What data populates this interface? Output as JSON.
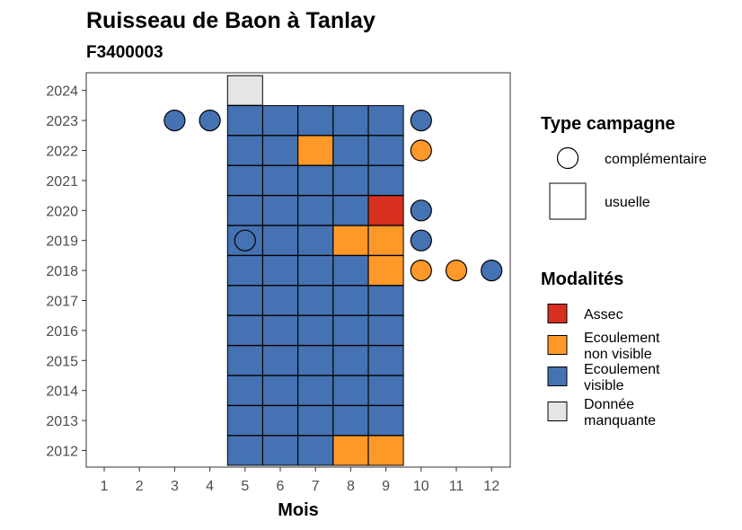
{
  "chart_data": {
    "type": "heatmap",
    "title": "Ruisseau de Baon à Tanlay",
    "subtitle": "F3400003",
    "xlabel": "Mois",
    "ylabel": "",
    "x_ticks": [
      "1",
      "2",
      "3",
      "4",
      "5",
      "6",
      "7",
      "8",
      "9",
      "10",
      "11",
      "12"
    ],
    "y_ticks": [
      "2012",
      "2013",
      "2014",
      "2015",
      "2016",
      "2017",
      "2018",
      "2019",
      "2020",
      "2021",
      "2022",
      "2023",
      "2024"
    ],
    "xlim": [
      1,
      12
    ],
    "ylim": [
      2012,
      2024
    ],
    "grid": false,
    "legend_position": "right",
    "type_legend": {
      "title": "Type campagne",
      "items": [
        {
          "key": "complementaire",
          "label": "complémentaire",
          "shape": "circle"
        },
        {
          "key": "usuelle",
          "label": "usuelle",
          "shape": "square"
        }
      ]
    },
    "modalites_legend": {
      "title": "Modalités",
      "items": [
        {
          "key": "assec",
          "lines": [
            "Assec"
          ],
          "color": "#d7301f"
        },
        {
          "key": "non_visible",
          "lines": [
            "Ecoulement",
            "non visible"
          ],
          "color": "#fe9929"
        },
        {
          "key": "visible",
          "lines": [
            "Ecoulement",
            "visible"
          ],
          "color": "#4572b2"
        },
        {
          "key": "manquante",
          "lines": [
            "Donnée",
            "manquante"
          ],
          "color": "#e5e5e5"
        }
      ]
    },
    "points": [
      {
        "year": 2012,
        "month": 5,
        "type": "u",
        "status": "visible"
      },
      {
        "year": 2012,
        "month": 6,
        "type": "u",
        "status": "visible"
      },
      {
        "year": 2012,
        "month": 7,
        "type": "u",
        "status": "visible"
      },
      {
        "year": 2012,
        "month": 8,
        "type": "u",
        "status": "non_visible"
      },
      {
        "year": 2012,
        "month": 9,
        "type": "u",
        "status": "non_visible"
      },
      {
        "year": 2013,
        "month": 5,
        "type": "u",
        "status": "visible"
      },
      {
        "year": 2013,
        "month": 6,
        "type": "u",
        "status": "visible"
      },
      {
        "year": 2013,
        "month": 7,
        "type": "u",
        "status": "visible"
      },
      {
        "year": 2013,
        "month": 8,
        "type": "u",
        "status": "visible"
      },
      {
        "year": 2013,
        "month": 9,
        "type": "u",
        "status": "visible"
      },
      {
        "year": 2014,
        "month": 5,
        "type": "u",
        "status": "visible"
      },
      {
        "year": 2014,
        "month": 6,
        "type": "u",
        "status": "visible"
      },
      {
        "year": 2014,
        "month": 7,
        "type": "u",
        "status": "visible"
      },
      {
        "year": 2014,
        "month": 8,
        "type": "u",
        "status": "visible"
      },
      {
        "year": 2014,
        "month": 9,
        "type": "u",
        "status": "visible"
      },
      {
        "year": 2015,
        "month": 5,
        "type": "u",
        "status": "visible"
      },
      {
        "year": 2015,
        "month": 6,
        "type": "u",
        "status": "visible"
      },
      {
        "year": 2015,
        "month": 7,
        "type": "u",
        "status": "visible"
      },
      {
        "year": 2015,
        "month": 8,
        "type": "u",
        "status": "visible"
      },
      {
        "year": 2015,
        "month": 9,
        "type": "u",
        "status": "visible"
      },
      {
        "year": 2016,
        "month": 5,
        "type": "u",
        "status": "visible"
      },
      {
        "year": 2016,
        "month": 6,
        "type": "u",
        "status": "visible"
      },
      {
        "year": 2016,
        "month": 7,
        "type": "u",
        "status": "visible"
      },
      {
        "year": 2016,
        "month": 8,
        "type": "u",
        "status": "visible"
      },
      {
        "year": 2016,
        "month": 9,
        "type": "u",
        "status": "visible"
      },
      {
        "year": 2017,
        "month": 5,
        "type": "u",
        "status": "visible"
      },
      {
        "year": 2017,
        "month": 6,
        "type": "u",
        "status": "visible"
      },
      {
        "year": 2017,
        "month": 7,
        "type": "u",
        "status": "visible"
      },
      {
        "year": 2017,
        "month": 8,
        "type": "u",
        "status": "visible"
      },
      {
        "year": 2017,
        "month": 9,
        "type": "u",
        "status": "visible"
      },
      {
        "year": 2018,
        "month": 5,
        "type": "u",
        "status": "visible"
      },
      {
        "year": 2018,
        "month": 6,
        "type": "u",
        "status": "visible"
      },
      {
        "year": 2018,
        "month": 7,
        "type": "u",
        "status": "visible"
      },
      {
        "year": 2018,
        "month": 8,
        "type": "u",
        "status": "visible"
      },
      {
        "year": 2018,
        "month": 9,
        "type": "u",
        "status": "non_visible"
      },
      {
        "year": 2018,
        "month": 10,
        "type": "c",
        "status": "non_visible"
      },
      {
        "year": 2018,
        "month": 11,
        "type": "c",
        "status": "non_visible"
      },
      {
        "year": 2018,
        "month": 12,
        "type": "c",
        "status": "visible"
      },
      {
        "year": 2019,
        "month": 5,
        "type": "u",
        "status": "visible"
      },
      {
        "year": 2019,
        "month": 5,
        "type": "c",
        "status": "visible"
      },
      {
        "year": 2019,
        "month": 6,
        "type": "u",
        "status": "visible"
      },
      {
        "year": 2019,
        "month": 7,
        "type": "u",
        "status": "visible"
      },
      {
        "year": 2019,
        "month": 8,
        "type": "u",
        "status": "non_visible"
      },
      {
        "year": 2019,
        "month": 9,
        "type": "u",
        "status": "non_visible"
      },
      {
        "year": 2019,
        "month": 10,
        "type": "c",
        "status": "visible"
      },
      {
        "year": 2020,
        "month": 5,
        "type": "u",
        "status": "visible"
      },
      {
        "year": 2020,
        "month": 6,
        "type": "u",
        "status": "visible"
      },
      {
        "year": 2020,
        "month": 7,
        "type": "u",
        "status": "visible"
      },
      {
        "year": 2020,
        "month": 8,
        "type": "u",
        "status": "visible"
      },
      {
        "year": 2020,
        "month": 9,
        "type": "u",
        "status": "assec"
      },
      {
        "year": 2020,
        "month": 10,
        "type": "c",
        "status": "visible"
      },
      {
        "year": 2021,
        "month": 5,
        "type": "u",
        "status": "visible"
      },
      {
        "year": 2021,
        "month": 6,
        "type": "u",
        "status": "visible"
      },
      {
        "year": 2021,
        "month": 7,
        "type": "u",
        "status": "visible"
      },
      {
        "year": 2021,
        "month": 8,
        "type": "u",
        "status": "visible"
      },
      {
        "year": 2021,
        "month": 9,
        "type": "u",
        "status": "visible"
      },
      {
        "year": 2022,
        "month": 5,
        "type": "u",
        "status": "visible"
      },
      {
        "year": 2022,
        "month": 6,
        "type": "u",
        "status": "visible"
      },
      {
        "year": 2022,
        "month": 7,
        "type": "u",
        "status": "non_visible"
      },
      {
        "year": 2022,
        "month": 8,
        "type": "u",
        "status": "visible"
      },
      {
        "year": 2022,
        "month": 9,
        "type": "u",
        "status": "visible"
      },
      {
        "year": 2022,
        "month": 10,
        "type": "c",
        "status": "non_visible"
      },
      {
        "year": 2023,
        "month": 3,
        "type": "c",
        "status": "visible"
      },
      {
        "year": 2023,
        "month": 4,
        "type": "c",
        "status": "visible"
      },
      {
        "year": 2023,
        "month": 5,
        "type": "u",
        "status": "visible"
      },
      {
        "year": 2023,
        "month": 6,
        "type": "u",
        "status": "visible"
      },
      {
        "year": 2023,
        "month": 7,
        "type": "u",
        "status": "visible"
      },
      {
        "year": 2023,
        "month": 8,
        "type": "u",
        "status": "visible"
      },
      {
        "year": 2023,
        "month": 9,
        "type": "u",
        "status": "visible"
      },
      {
        "year": 2023,
        "month": 10,
        "type": "c",
        "status": "visible"
      },
      {
        "year": 2024,
        "month": 5,
        "type": "u",
        "status": "manquante"
      }
    ]
  }
}
